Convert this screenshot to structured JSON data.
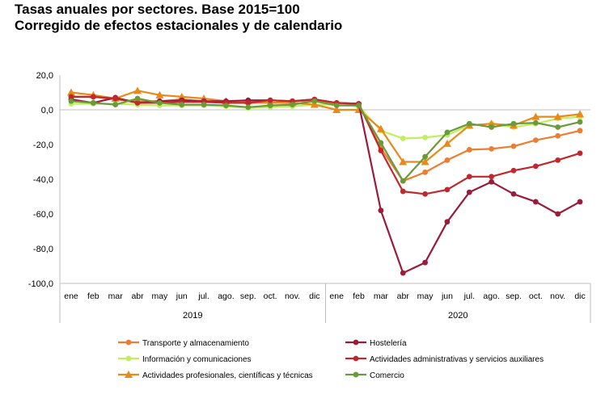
{
  "title_line1": "Tasas anuales por sectores. Base 2015=100",
  "title_line2": "Corregido de efectos estacionales y de calendario",
  "chart_data": {
    "type": "line",
    "years": [
      "2019",
      "2020"
    ],
    "categories": [
      "ene",
      "feb",
      "mar",
      "abr",
      "may",
      "jun",
      "jul.",
      "ago.",
      "sep.",
      "oct.",
      "nov.",
      "dic",
      "ene",
      "feb",
      "mar",
      "abr",
      "may",
      "jun",
      "jul.",
      "ago.",
      "sep.",
      "oct.",
      "nov.",
      "dic"
    ],
    "ylim": [
      -100,
      20
    ],
    "yticks": [
      20,
      0,
      -20,
      -40,
      -60,
      -80,
      -100
    ],
    "ytick_labels": [
      "20,0",
      "0,0",
      "-20,0",
      "-40,0",
      "-60,0",
      "-80,0",
      "-100,0"
    ],
    "legend_position": "bottom",
    "grid": false,
    "series": [
      {
        "name": "Transporte y almacenamiento",
        "color": "#ED7D31",
        "marker": "circle",
        "values": [
          7.5,
          7.5,
          6,
          5,
          5,
          6,
          5,
          4,
          4,
          4,
          5,
          5,
          3,
          3,
          -22,
          -41,
          -36,
          -29,
          -23,
          -22.5,
          -21,
          -17.5,
          -15,
          -12
        ]
      },
      {
        "name": "Información y comunicaciones",
        "color": "#BFEF5C",
        "marker": "circle",
        "values": [
          3.5,
          3.5,
          3.5,
          3,
          2.5,
          2.5,
          2.5,
          2,
          1,
          1.5,
          2,
          3,
          3,
          2,
          -12,
          -16.5,
          -16,
          -14.5,
          -9,
          -8,
          -10,
          -8,
          -5,
          -4
        ]
      },
      {
        "name": "Actividades profesionales, científicas y técnicas",
        "color": "#E88A1A",
        "marker": "triangle",
        "values": [
          10,
          8.5,
          6.5,
          11,
          8.5,
          7.5,
          6.5,
          5,
          5,
          4,
          4,
          3,
          0,
          0,
          -11,
          -30,
          -30,
          -19.5,
          -9,
          -8,
          -9,
          -4,
          -4,
          -2.5
        ]
      },
      {
        "name": "Hostelería",
        "color": "#9B1B3B",
        "marker": "circle",
        "values": [
          6,
          4,
          7,
          4,
          5,
          5.5,
          5,
          5,
          5.5,
          5.5,
          5,
          6,
          4,
          3.5,
          -58,
          -94,
          -88,
          -64.5,
          -47.5,
          -41.5,
          -48.5,
          -53,
          -60,
          -53
        ]
      },
      {
        "name": "Actividades administrativas y servicios auxiliares",
        "color": "#C0282D",
        "marker": "circle",
        "values": [
          7.5,
          7.5,
          6.5,
          4,
          4,
          4.5,
          4.5,
          4,
          4,
          5.5,
          5,
          6,
          4,
          3.5,
          -23.5,
          -47,
          -48.5,
          -46,
          -38.5,
          -38.5,
          -35,
          -32.5,
          -29,
          -25
        ]
      },
      {
        "name": "Comercio",
        "color": "#6A9A3A",
        "marker": "circle",
        "values": [
          5,
          4,
          3,
          6.5,
          4,
          3,
          3,
          2.5,
          1.5,
          2.5,
          3,
          5,
          2.5,
          2.5,
          -19,
          -41,
          -27,
          -13,
          -8,
          -10,
          -8,
          -7.5,
          -10,
          -7
        ]
      }
    ]
  }
}
